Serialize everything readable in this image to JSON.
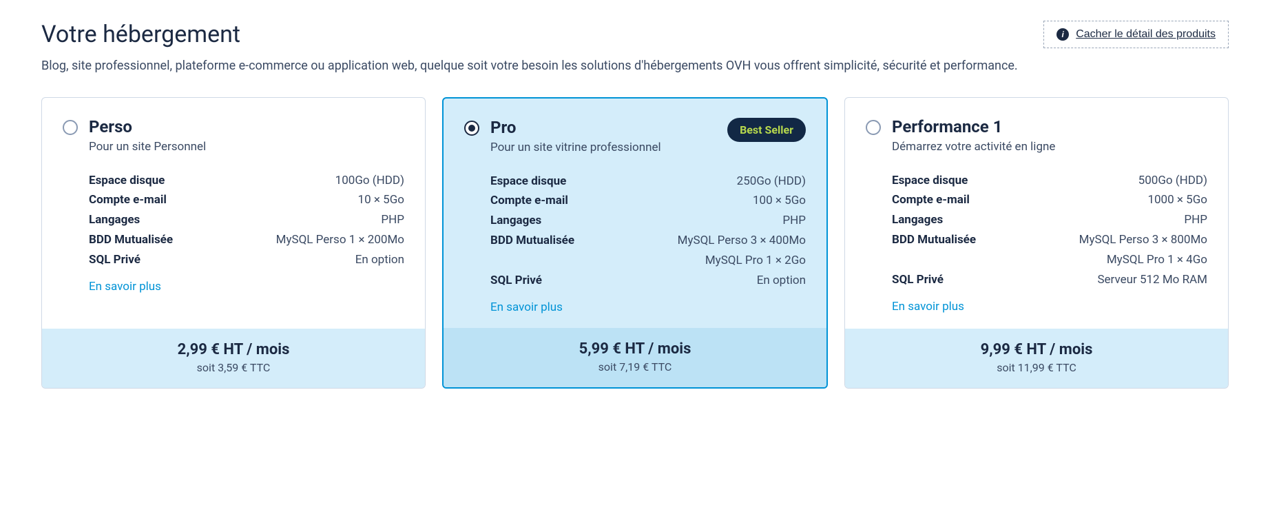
{
  "header": {
    "title": "Votre hébergement",
    "hide_details_label": " Cacher le détail des produits",
    "subtitle": "Blog, site professionnel, plateforme e-commerce ou application web, quelque soit votre besoin les solutions d'hébergements OVH vous offrent simplicité, sécurité et performance."
  },
  "learn_more_label": "En savoir plus",
  "badge_label": "Best Seller",
  "colors": {
    "text_primary": "#1b2942",
    "text_secondary": "#3b4a63",
    "accent_blue": "#0093d6",
    "selected_bg": "#d4edfa",
    "selected_price_bg": "#bce2f5",
    "badge_bg": "#122845",
    "badge_text": "#b7d94d",
    "border": "#cfd9e6"
  },
  "plans": [
    {
      "id": "perso",
      "title": "Perso",
      "subtitle": "Pour un site Personnel",
      "selected": false,
      "badge": false,
      "specs": [
        {
          "label": "Espace disque",
          "values": [
            "100Go (HDD)"
          ]
        },
        {
          "label": "Compte e-mail",
          "values": [
            "10 × 5Go"
          ]
        },
        {
          "label": "Langages",
          "values": [
            "PHP"
          ]
        },
        {
          "label": "BDD Mutualisée",
          "values": [
            "MySQL Perso 1 × 200Mo"
          ]
        },
        {
          "label": "SQL Privé",
          "values": [
            "En option"
          ]
        }
      ],
      "price_main": "2,99 € HT / mois",
      "price_sub": "soit 3,59 € TTC"
    },
    {
      "id": "pro",
      "title": "Pro",
      "subtitle": "Pour un site vitrine professionnel",
      "selected": true,
      "badge": true,
      "specs": [
        {
          "label": "Espace disque",
          "values": [
            "250Go (HDD)"
          ]
        },
        {
          "label": "Compte e-mail",
          "values": [
            "100 × 5Go"
          ]
        },
        {
          "label": "Langages",
          "values": [
            "PHP"
          ]
        },
        {
          "label": "BDD Mutualisée",
          "values": [
            "MySQL Perso 3 × 400Mo",
            "MySQL Pro 1 × 2Go"
          ]
        },
        {
          "label": "SQL Privé",
          "values": [
            "En option"
          ]
        }
      ],
      "price_main": "5,99 € HT / mois",
      "price_sub": "soit 7,19 € TTC"
    },
    {
      "id": "performance-1",
      "title": "Performance 1",
      "subtitle": "Démarrez votre activité en ligne",
      "selected": false,
      "badge": false,
      "specs": [
        {
          "label": "Espace disque",
          "values": [
            "500Go (HDD)"
          ]
        },
        {
          "label": "Compte e-mail",
          "values": [
            "1000 × 5Go"
          ]
        },
        {
          "label": "Langages",
          "values": [
            "PHP"
          ]
        },
        {
          "label": "BDD Mutualisée",
          "values": [
            "MySQL Perso 3 × 800Mo",
            "MySQL Pro 1 × 4Go"
          ]
        },
        {
          "label": "SQL Privé",
          "values": [
            "Serveur 512 Mo RAM"
          ]
        }
      ],
      "price_main": "9,99 € HT / mois",
      "price_sub": "soit 11,99 € TTC"
    }
  ]
}
